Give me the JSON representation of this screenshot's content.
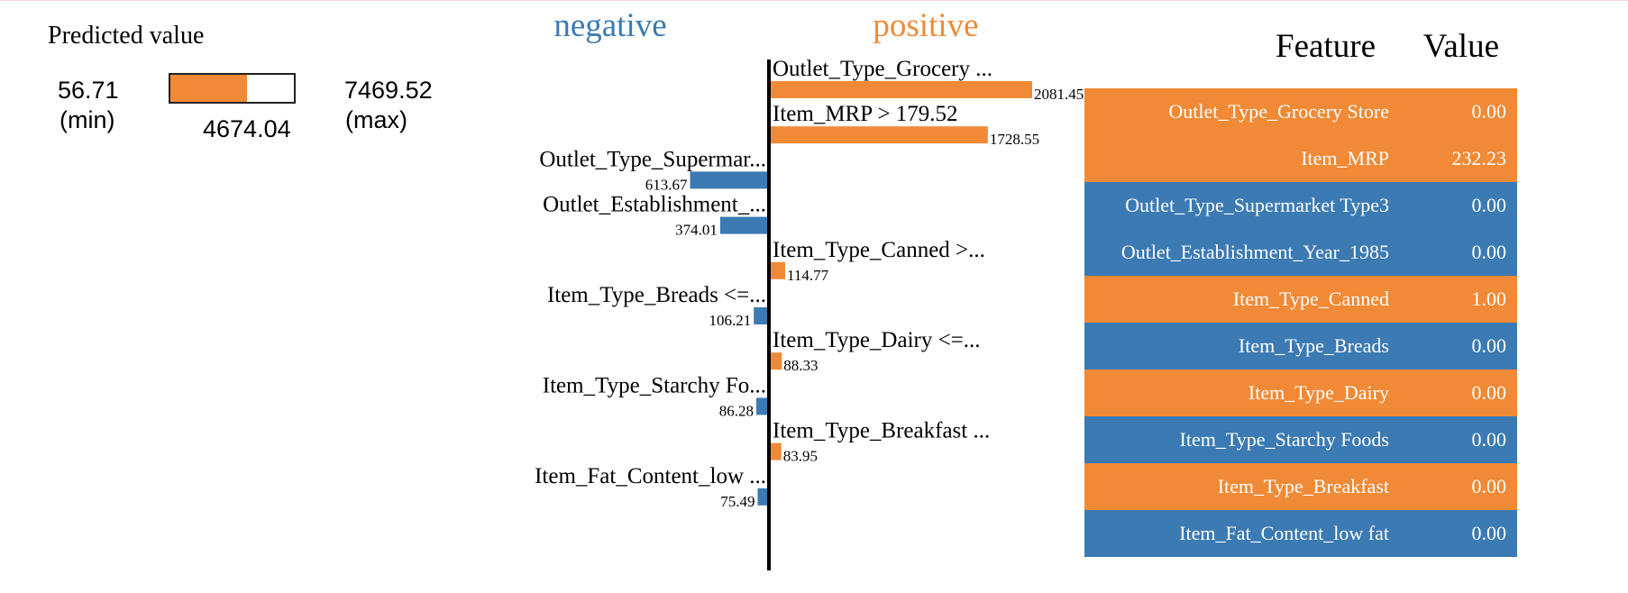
{
  "colors": {
    "positive": "#f08a36",
    "negative": "#3b7ab3"
  },
  "predicted": {
    "title": "Predicted value",
    "min": "56.71",
    "min_label": "(min)",
    "max": "7469.52",
    "max_label": "(max)",
    "value": "4674.04",
    "min_num": 56.71,
    "max_num": 7469.52,
    "value_num": 4674.04
  },
  "chart_data": {
    "type": "bar",
    "legend": {
      "negative": "negative",
      "positive": "positive"
    },
    "max_abs": 2081.45,
    "bars": [
      {
        "label": "Outlet_Type_Grocery ...",
        "value": 2081.45,
        "value_label": "2081.45",
        "direction": "positive"
      },
      {
        "label": "Item_MRP > 179.52",
        "value": 1728.55,
        "value_label": "1728.55",
        "direction": "positive"
      },
      {
        "label": "Outlet_Type_Supermar...",
        "value": 613.67,
        "value_label": "613.67",
        "direction": "negative"
      },
      {
        "label": "Outlet_Establishment_...",
        "value": 374.01,
        "value_label": "374.01",
        "direction": "negative"
      },
      {
        "label": "Item_Type_Canned >...",
        "value": 114.77,
        "value_label": "114.77",
        "direction": "positive"
      },
      {
        "label": "Item_Type_Breads <=...",
        "value": 106.21,
        "value_label": "106.21",
        "direction": "negative"
      },
      {
        "label": "Item_Type_Dairy <=...",
        "value": 88.33,
        "value_label": "88.33",
        "direction": "positive"
      },
      {
        "label": "Item_Type_Starchy Fo...",
        "value": 86.28,
        "value_label": "86.28",
        "direction": "negative"
      },
      {
        "label": "Item_Type_Breakfast ...",
        "value": 83.95,
        "value_label": "83.95",
        "direction": "positive"
      },
      {
        "label": "Item_Fat_Content_low ...",
        "value": 75.49,
        "value_label": "75.49",
        "direction": "negative"
      }
    ]
  },
  "table": {
    "header_feature": "Feature",
    "header_value": "Value",
    "rows": [
      {
        "feature": "Outlet_Type_Grocery Store",
        "value": "0.00",
        "direction": "positive"
      },
      {
        "feature": "Item_MRP",
        "value": "232.23",
        "direction": "positive"
      },
      {
        "feature": "Outlet_Type_Supermarket Type3",
        "value": "0.00",
        "direction": "negative"
      },
      {
        "feature": "Outlet_Establishment_Year_1985",
        "value": "0.00",
        "direction": "negative"
      },
      {
        "feature": "Item_Type_Canned",
        "value": "1.00",
        "direction": "positive"
      },
      {
        "feature": "Item_Type_Breads",
        "value": "0.00",
        "direction": "negative"
      },
      {
        "feature": "Item_Type_Dairy",
        "value": "0.00",
        "direction": "positive"
      },
      {
        "feature": "Item_Type_Starchy Foods",
        "value": "0.00",
        "direction": "negative"
      },
      {
        "feature": "Item_Type_Breakfast",
        "value": "0.00",
        "direction": "positive"
      },
      {
        "feature": "Item_Fat_Content_low fat",
        "value": "0.00",
        "direction": "negative"
      }
    ]
  }
}
